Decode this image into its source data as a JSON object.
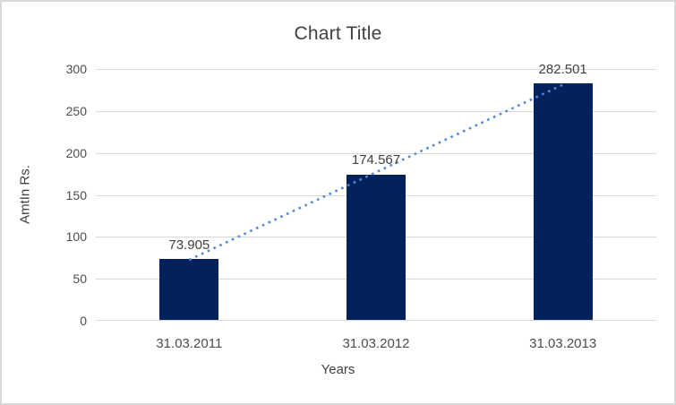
{
  "chart_data": {
    "type": "bar",
    "title": "Chart Title",
    "categories": [
      "31.03.2011",
      "31.03.2012",
      "31.03.2013"
    ],
    "values": [
      73.905,
      174.567,
      282.501
    ],
    "data_labels": [
      "73.905",
      "174.567",
      "282.501"
    ],
    "xlabel": "Years",
    "ylabel": "AmtIn Rs.",
    "ylim": [
      0,
      300
    ],
    "ytick_step": 50,
    "yticks": [
      0,
      50,
      100,
      150,
      200,
      250,
      300
    ],
    "grid": true,
    "legend": "none",
    "trendline": {
      "type": "linear",
      "style": "dotted",
      "color": "#5588d6"
    },
    "colors": {
      "bar": "#02215d",
      "gridline": "#d9d9d9",
      "axis_line": "#d9d9d9",
      "title_text": "#404040",
      "tick_text": "#4d4d4d",
      "data_label_text": "#404040",
      "frame_border": "#d9d9d9",
      "background": "#ffffff"
    }
  }
}
